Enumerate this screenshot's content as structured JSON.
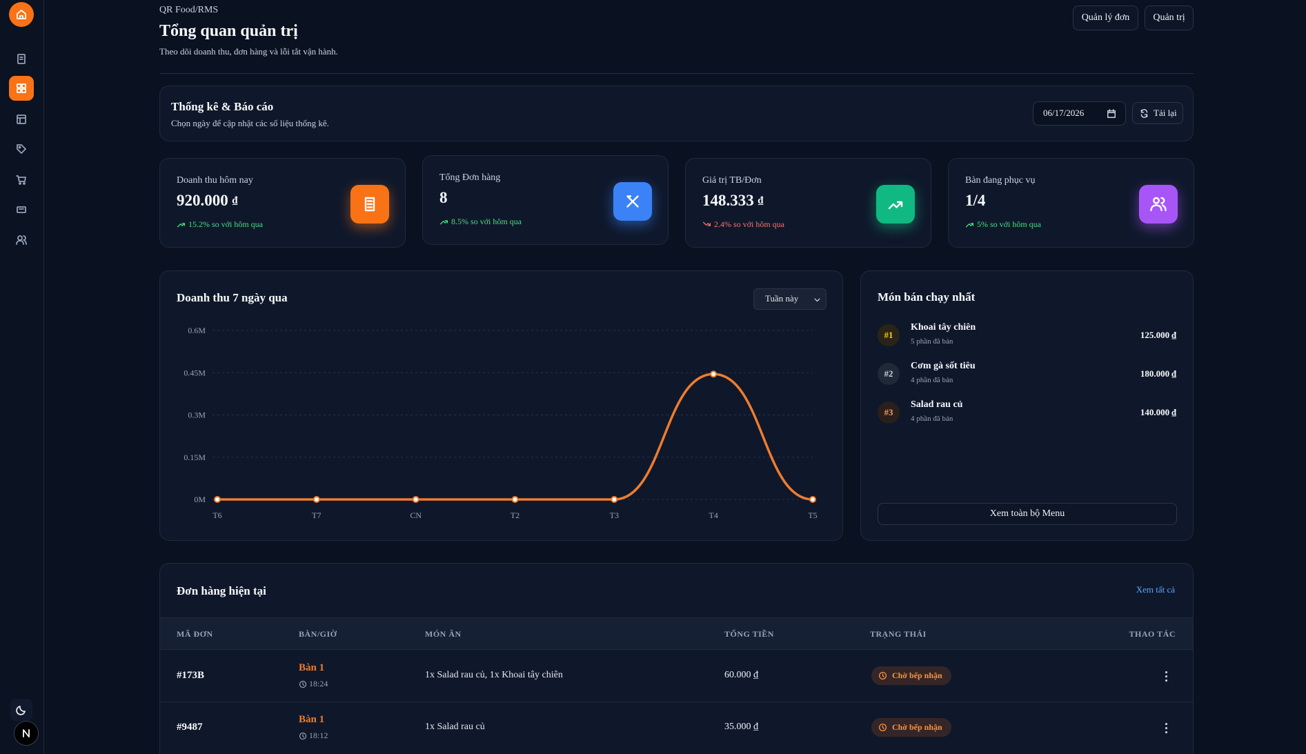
{
  "header": {
    "breadcrumb": "QR Food/RMS",
    "title": "Tổng quan quản trị",
    "subtitle": "Theo dõi doanh thu, đơn hàng và lỗi tắt vận hành.",
    "buttons": [
      "Quản lý đơn",
      "Quản trị"
    ]
  },
  "stats_panel": {
    "title": "Thống kê & Báo cáo",
    "subtitle": "Chọn ngày để cập nhật các số liệu thống kê.",
    "date": "06/17/2026",
    "reload": "Tải lại"
  },
  "kpis": [
    {
      "label": "Doanh thu hôm nay",
      "value": "920.000",
      "unit": "₫",
      "change": "15.2% so với hôm qua",
      "trend": "up"
    },
    {
      "label": "Tổng Đơn hàng",
      "value": "8",
      "change": "8.5% so với hôm qua",
      "trend": "up"
    },
    {
      "label": "Giá trị TB/Đơn",
      "value": "148.333",
      "unit": "₫",
      "change": "2.4% so với hôm qua",
      "trend": "down"
    },
    {
      "label": "Bàn đang phục vụ",
      "value": "1/4",
      "change": "5% so với hôm qua",
      "trend": "up"
    }
  ],
  "revenue_chart": {
    "type": "line",
    "title": "Doanh thu 7 ngày qua",
    "period": "Tuần này",
    "categories": [
      "T6",
      "T7",
      "CN",
      "T2",
      "T3",
      "T4",
      "T5"
    ],
    "values": [
      0,
      0,
      0,
      0,
      0,
      445000,
      0
    ],
    "color": "#f07c2c",
    "ylim": [
      0,
      600000
    ],
    "yticks": [
      {
        "value": 0,
        "label": "0M"
      },
      {
        "value": 150000,
        "label": "0.15M"
      },
      {
        "value": 300000,
        "label": "0.3M"
      },
      {
        "value": 450000,
        "label": "0.45M"
      },
      {
        "value": 600000,
        "label": "0.6M"
      }
    ],
    "grid": true
  },
  "top_items": {
    "title": "Món bán chạy nhất",
    "items": [
      {
        "rank": "#1",
        "name": "Khoai tây chiên",
        "sold": "5 phần đã bán",
        "amount": "125.000 ₫"
      },
      {
        "rank": "#2",
        "name": "Cơm gà sốt tiêu",
        "sold": "4 phần đã bán",
        "amount": "180.000 ₫"
      },
      {
        "rank": "#3",
        "name": "Salad rau củ",
        "sold": "4 phần đã bán",
        "amount": "140.000 ₫"
      }
    ],
    "button": "Xem toàn bộ Menu"
  },
  "orders": {
    "title": "Đơn hàng hiện tại",
    "view_all": "Xem tất cả",
    "columns": [
      "MÃ ĐƠN",
      "BÀN/GIỜ",
      "MÓN ĂN",
      "TỔNG TIỀN",
      "TRẠNG THÁI",
      "THAO TÁC"
    ],
    "rows": [
      {
        "id": "#173B",
        "table": "Bàn 1",
        "time": "18:24",
        "items": "1x Salad rau củ, 1x Khoai tây chiên",
        "total": "60.000 ₫",
        "status": "Chờ bếp nhận"
      },
      {
        "id": "#9487",
        "table": "Bàn 1",
        "time": "18:12",
        "items": "1x Salad rau củ",
        "total": "35.000 ₫",
        "status": "Chờ bếp nhận"
      }
    ]
  }
}
